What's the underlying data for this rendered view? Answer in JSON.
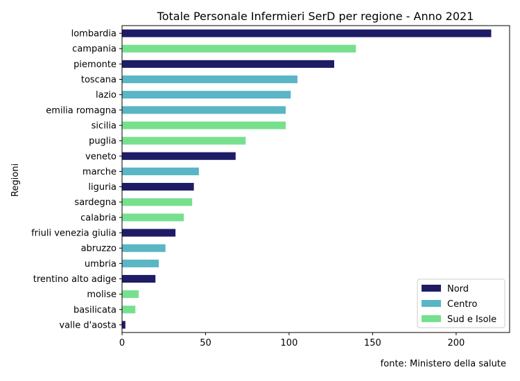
{
  "chart_data": {
    "type": "bar",
    "orientation": "horizontal",
    "title": "Totale Personale Infermieri SerD per regione - Anno 2021",
    "xlabel": "",
    "ylabel": "Regioni",
    "xlim": [
      0,
      232
    ],
    "xticks": [
      0,
      50,
      100,
      150,
      200
    ],
    "grid": false,
    "legend_position": "bottom-right",
    "series": [
      {
        "name": "Nord",
        "color": "#1f1c66"
      },
      {
        "name": "Centro",
        "color": "#5ab5c5"
      },
      {
        "name": "Sud e Isole",
        "color": "#77e08f"
      }
    ],
    "categories": [
      "lombardia",
      "campania",
      "piemonte",
      "toscana",
      "lazio",
      "emilia romagna",
      "sicilia",
      "puglia",
      "veneto",
      "marche",
      "liguria",
      "sardegna",
      "calabria",
      "friuli venezia giulia",
      "abruzzo",
      "umbria",
      "trentino alto adige",
      "molise",
      "basilicata",
      "valle d'aosta"
    ],
    "values": [
      221,
      140,
      127,
      105,
      101,
      98,
      98,
      74,
      68,
      46,
      43,
      42,
      37,
      32,
      26,
      22,
      20,
      10,
      8,
      2
    ],
    "groups": [
      "Nord",
      "Sud e Isole",
      "Nord",
      "Centro",
      "Centro",
      "Centro",
      "Sud e Isole",
      "Sud e Isole",
      "Nord",
      "Centro",
      "Nord",
      "Sud e Isole",
      "Sud e Isole",
      "Nord",
      "Centro",
      "Centro",
      "Nord",
      "Sud e Isole",
      "Sud e Isole",
      "Nord"
    ]
  },
  "source_note": "fonte: Ministero della salute"
}
